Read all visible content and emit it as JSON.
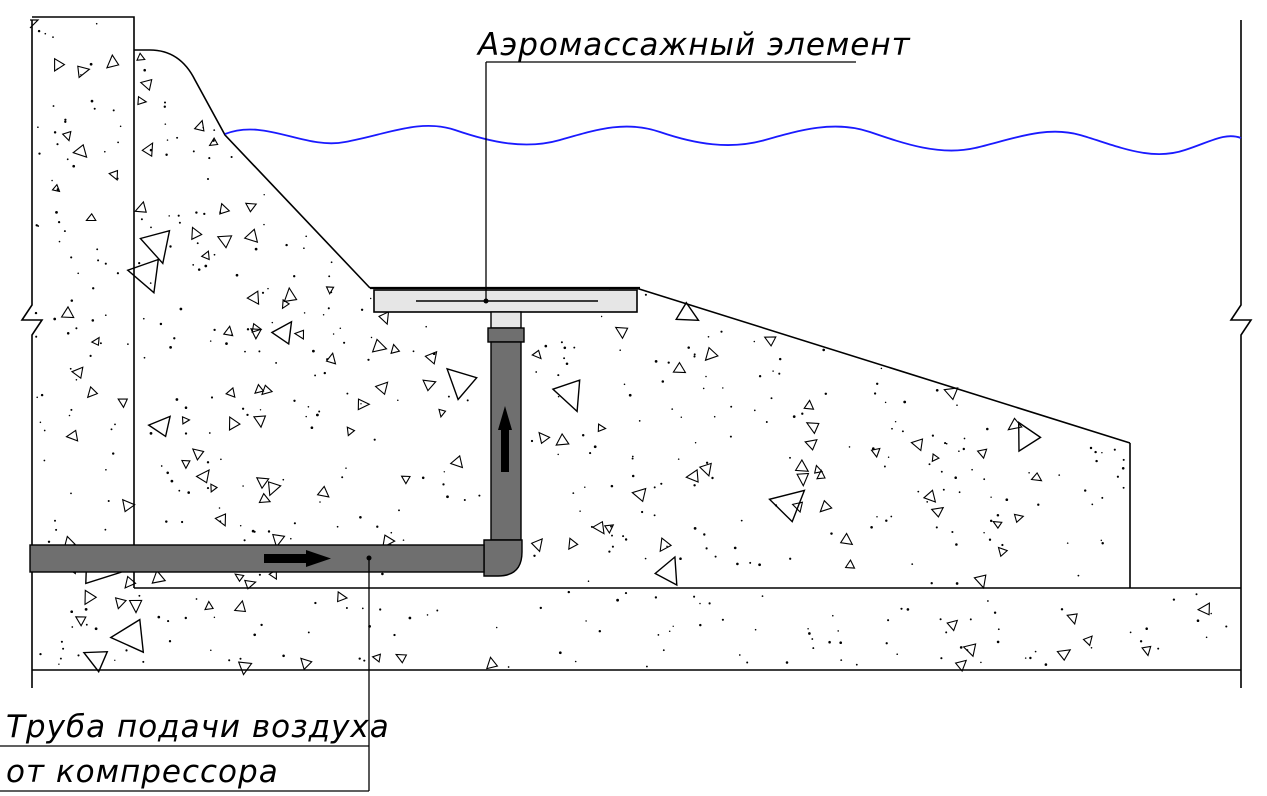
{
  "labels": {
    "aeromassage_element": "Аэромассажный элемент",
    "air_pipe_line1": "Труба подачи воздуха",
    "air_pipe_line2": "от компрессора"
  },
  "colors": {
    "water_line": "#1a1aff",
    "pipe_fill": "#6f6f6f",
    "pipe_stroke": "#000000",
    "element_fill": "#e6e6e6",
    "background": "#ffffff",
    "linework": "#000000"
  },
  "icons": {
    "flow_arrow_horizontal": "arrow-right-icon",
    "flow_arrow_vertical": "arrow-up-icon"
  }
}
